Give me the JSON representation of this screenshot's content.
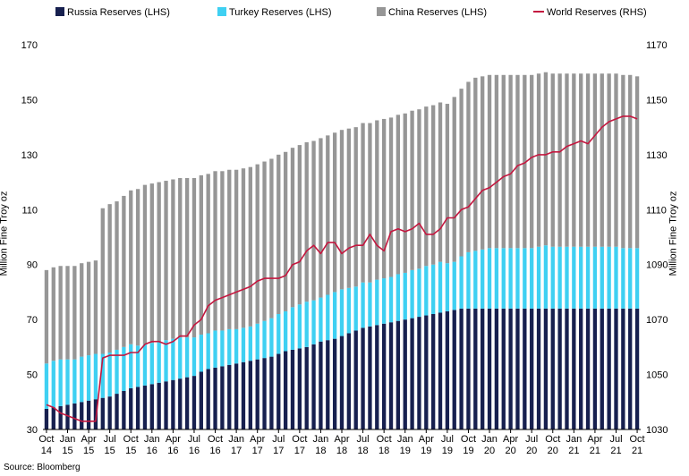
{
  "chart_data": {
    "type": "bar+line",
    "title": "",
    "source": "Source: Bloomberg",
    "legend": [
      "Russia Reserves (LHS)",
      "Turkey Reserves (LHS)",
      "China Reserves (LHS)",
      "World Reserves (RHS)"
    ],
    "colors": {
      "russia": "#17204f",
      "turkey": "#3fd0f2",
      "china": "#969696",
      "world": "#c4173f"
    },
    "ylabel_left": "Million Fine Troy oz",
    "ylabel_right": "Million Fine Troy oz",
    "ylim_left": [
      30,
      170
    ],
    "ylim_right": [
      1030,
      1170
    ],
    "yticks_left": [
      "30",
      "50",
      "70",
      "90",
      "110",
      "130",
      "150",
      "170"
    ],
    "yticks_right": [
      "1030",
      "1050",
      "1070",
      "1090",
      "1110",
      "1130",
      "1150",
      "1170"
    ],
    "x_ticks": [
      {
        "month": "Oct",
        "year": "14"
      },
      {
        "month": "Jan",
        "year": "15"
      },
      {
        "month": "Apr",
        "year": "15"
      },
      {
        "month": "Jul",
        "year": "15"
      },
      {
        "month": "Oct",
        "year": "15"
      },
      {
        "month": "Jan",
        "year": "16"
      },
      {
        "month": "Apr",
        "year": "16"
      },
      {
        "month": "Jul",
        "year": "16"
      },
      {
        "month": "Oct",
        "year": "16"
      },
      {
        "month": "Jan",
        "year": "17"
      },
      {
        "month": "Apr",
        "year": "17"
      },
      {
        "month": "Jul",
        "year": "17"
      },
      {
        "month": "Oct",
        "year": "17"
      },
      {
        "month": "Jan",
        "year": "18"
      },
      {
        "month": "Apr",
        "year": "18"
      },
      {
        "month": "Jul",
        "year": "18"
      },
      {
        "month": "Oct",
        "year": "18"
      },
      {
        "month": "Jan",
        "year": "19"
      },
      {
        "month": "Apr",
        "year": "19"
      },
      {
        "month": "Jul",
        "year": "19"
      },
      {
        "month": "Oct",
        "year": "19"
      },
      {
        "month": "Jan",
        "year": "20"
      },
      {
        "month": "Apr",
        "year": "20"
      },
      {
        "month": "Jul",
        "year": "20"
      },
      {
        "month": "Oct",
        "year": "20"
      },
      {
        "month": "Jan",
        "year": "21"
      },
      {
        "month": "Apr",
        "year": "21"
      },
      {
        "month": "Jul",
        "year": "21"
      },
      {
        "month": "Oct",
        "year": "21"
      }
    ],
    "months_start": "Oct 2014",
    "russia": [
      37.5,
      38,
      38.5,
      39,
      39.5,
      40,
      40.5,
      41,
      41.5,
      42,
      43,
      44,
      45,
      45.5,
      46,
      46.5,
      47,
      47.5,
      48,
      48.5,
      49,
      49.5,
      51,
      52,
      52.5,
      53,
      53.5,
      54,
      54.5,
      55,
      55.5,
      56,
      56.5,
      57.5,
      58.5,
      59,
      59.5,
      60,
      61,
      62,
      62.5,
      63,
      64,
      65,
      66,
      67,
      67.5,
      68,
      68.5,
      69,
      69.5,
      70,
      70.5,
      71,
      71.5,
      72,
      72.5,
      73,
      73.5,
      74,
      74,
      74,
      74,
      74,
      74,
      74,
      74,
      74,
      74,
      74,
      74,
      74,
      74,
      74,
      74,
      74,
      74,
      74,
      74,
      74,
      74,
      74,
      74,
      74,
      74
    ],
    "turkey": [
      16.5,
      17,
      17,
      16.5,
      16,
      16.5,
      16.5,
      16.5,
      16,
      16,
      16,
      16,
      16,
      15,
      15,
      15,
      15,
      15,
      15,
      15,
      14.5,
      14,
      13.5,
      13,
      13.5,
      13,
      13,
      12.5,
      12.5,
      12.5,
      13,
      13.5,
      14,
      14.5,
      14.5,
      15.5,
      16,
      16.5,
      16,
      16,
      16.5,
      17,
      17,
      16.5,
      16,
      16.5,
      16,
      16.5,
      16.5,
      16.5,
      17,
      17,
      17.5,
      17.5,
      18,
      18,
      18.5,
      17.5,
      17.5,
      19,
      20.5,
      21,
      21.5,
      22,
      22,
      22,
      22,
      22,
      22,
      22,
      22.5,
      23,
      22.5,
      22.5,
      22.5,
      22.5,
      22.5,
      22.5,
      22.5,
      22.5,
      22.5,
      22.5,
      22,
      22,
      22
    ],
    "china": [
      34,
      34,
      34,
      34,
      34,
      34,
      34,
      34,
      53,
      54,
      54,
      55,
      56,
      57,
      58,
      58,
      58,
      58,
      58,
      58,
      58,
      58,
      58,
      58,
      58,
      58,
      58,
      58,
      58,
      58,
      58,
      58,
      58,
      58,
      58,
      58,
      58,
      58,
      58,
      58,
      58,
      58,
      58,
      58,
      58,
      58,
      58,
      58,
      58,
      58,
      58,
      58,
      58,
      58,
      58,
      58,
      58,
      58,
      60,
      61,
      62,
      63,
      63,
      63,
      63,
      63,
      63,
      63,
      63,
      63,
      63,
      63,
      63,
      63,
      63,
      63,
      63,
      63,
      63,
      63,
      63,
      63,
      63,
      63,
      62.5
    ],
    "world": [
      1039,
      1038,
      1036,
      1035,
      1034,
      1033,
      1033,
      1033,
      1056,
      1057,
      1057,
      1057,
      1058,
      1058,
      1061,
      1062,
      1062,
      1061,
      1062,
      1064,
      1064,
      1068,
      1070,
      1075,
      1077,
      1078,
      1079,
      1080,
      1081,
      1082,
      1084,
      1085,
      1085,
      1085,
      1086,
      1090,
      1091,
      1095,
      1097,
      1094,
      1098,
      1098,
      1094,
      1096,
      1097,
      1097,
      1101,
      1097,
      1095,
      1102,
      1103,
      1102,
      1103,
      1105,
      1101,
      1101,
      1103,
      1107,
      1107,
      1110,
      1111,
      1114,
      1117,
      1118,
      1120,
      1122,
      1123,
      1126,
      1127,
      1129,
      1130,
      1130,
      1131,
      1131,
      1133,
      1134,
      1135,
      1134,
      1137,
      1140,
      1142,
      1143,
      1144,
      1144,
      1143
    ]
  }
}
